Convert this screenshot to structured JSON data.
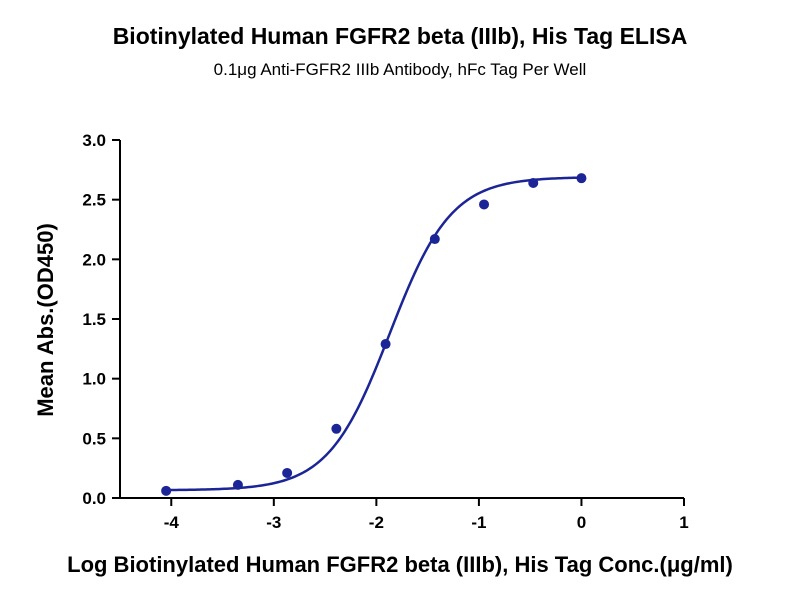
{
  "chart_data": {
    "type": "scatter",
    "title": "Biotinylated Human FGFR2 beta (IIIb), His Tag ELISA",
    "subtitle": "0.1μg Anti-FGFR2 IIIb Antibody, hFc Tag Per Well",
    "xlabel": "Log Biotinylated Human FGFR2 beta (IIIb), His Tag Conc.(μg/ml)",
    "ylabel": "Mean Abs.(OD450)",
    "xlim": [
      -4.5,
      1
    ],
    "ylim": [
      0,
      3.0
    ],
    "x_ticks": [
      -4,
      -3,
      -2,
      -1,
      0,
      1
    ],
    "x_tick_labels": [
      "-4",
      "-3",
      "-2",
      "-1",
      "0",
      "1"
    ],
    "y_ticks": [
      0,
      0.5,
      1.0,
      1.5,
      2.0,
      2.5,
      3.0
    ],
    "y_tick_labels": [
      "0.0",
      "0.5",
      "1.0",
      "1.5",
      "2.0",
      "2.5",
      "3.0"
    ],
    "grid": false,
    "series": [
      {
        "x": [
          -4.05,
          -3.35,
          -2.87,
          -2.39,
          -1.91,
          -1.43,
          -0.95,
          -0.47,
          0.0
        ],
        "y": [
          0.06,
          0.11,
          0.21,
          0.58,
          1.29,
          2.17,
          2.46,
          2.64,
          2.68
        ],
        "color": "#1c2596"
      }
    ],
    "fit": {
      "model": "4PL",
      "bottom": 0.065,
      "top": 2.69,
      "logEC50": -1.87,
      "hill": 1.45,
      "x_range": [
        -4.05,
        0.0
      ],
      "color": "#1c2596"
    }
  }
}
